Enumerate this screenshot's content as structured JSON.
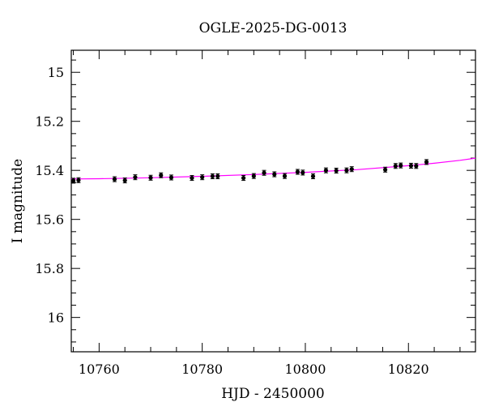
{
  "chart_data": {
    "type": "scatter",
    "title": "OGLE-2025-DG-0013",
    "xlabel": "HJD - 2450000",
    "ylabel": "I magnitude",
    "xlim": [
      10754.6,
      10833
    ],
    "ylim": [
      16.14,
      14.91
    ],
    "y_inverted": true,
    "grid": false,
    "x_major_ticks": [
      10760,
      10780,
      10800,
      10820
    ],
    "x_tick_labels": [
      "10760",
      "10780",
      "10800",
      "10820"
    ],
    "y_major_ticks": [
      15,
      15.2,
      15.4,
      15.6,
      15.8,
      16
    ],
    "y_tick_labels": [
      "15",
      "15.2",
      "15.4",
      "15.6",
      "15.8",
      "16"
    ],
    "series": [
      {
        "kind": "points_with_errorbars",
        "color": "#000000",
        "points": [
          {
            "x": 10755.0,
            "y": 15.442,
            "err": 0.01
          },
          {
            "x": 10756.0,
            "y": 15.44,
            "err": 0.01
          },
          {
            "x": 10763.0,
            "y": 15.436,
            "err": 0.01
          },
          {
            "x": 10765.0,
            "y": 15.441,
            "err": 0.01
          },
          {
            "x": 10767.0,
            "y": 15.428,
            "err": 0.01
          },
          {
            "x": 10770.0,
            "y": 15.43,
            "err": 0.01
          },
          {
            "x": 10772.0,
            "y": 15.42,
            "err": 0.01
          },
          {
            "x": 10774.0,
            "y": 15.429,
            "err": 0.01
          },
          {
            "x": 10778.0,
            "y": 15.431,
            "err": 0.01
          },
          {
            "x": 10780.0,
            "y": 15.428,
            "err": 0.01
          },
          {
            "x": 10782.0,
            "y": 15.424,
            "err": 0.01
          },
          {
            "x": 10783.0,
            "y": 15.424,
            "err": 0.01
          },
          {
            "x": 10788.0,
            "y": 15.431,
            "err": 0.01
          },
          {
            "x": 10790.0,
            "y": 15.423,
            "err": 0.01
          },
          {
            "x": 10792.0,
            "y": 15.41,
            "err": 0.01
          },
          {
            "x": 10794.0,
            "y": 15.416,
            "err": 0.01
          },
          {
            "x": 10796.0,
            "y": 15.423,
            "err": 0.01
          },
          {
            "x": 10798.5,
            "y": 15.406,
            "err": 0.01
          },
          {
            "x": 10799.5,
            "y": 15.409,
            "err": 0.01
          },
          {
            "x": 10801.5,
            "y": 15.424,
            "err": 0.01
          },
          {
            "x": 10804.0,
            "y": 15.4,
            "err": 0.01
          },
          {
            "x": 10806.0,
            "y": 15.401,
            "err": 0.01
          },
          {
            "x": 10808.0,
            "y": 15.4,
            "err": 0.01
          },
          {
            "x": 10809.0,
            "y": 15.395,
            "err": 0.01
          },
          {
            "x": 10815.5,
            "y": 15.397,
            "err": 0.01
          },
          {
            "x": 10817.5,
            "y": 15.382,
            "err": 0.01
          },
          {
            "x": 10818.5,
            "y": 15.38,
            "err": 0.01
          },
          {
            "x": 10820.5,
            "y": 15.381,
            "err": 0.01
          },
          {
            "x": 10821.5,
            "y": 15.382,
            "err": 0.01
          },
          {
            "x": 10823.5,
            "y": 15.366,
            "err": 0.01
          }
        ]
      },
      {
        "kind": "model_curve",
        "color": "#ff00ff",
        "points": [
          {
            "x": 10754.6,
            "y": 15.435
          },
          {
            "x": 10760,
            "y": 15.434
          },
          {
            "x": 10770,
            "y": 15.43
          },
          {
            "x": 10780,
            "y": 15.424
          },
          {
            "x": 10790,
            "y": 15.417
          },
          {
            "x": 10800,
            "y": 15.408
          },
          {
            "x": 10810,
            "y": 15.397
          },
          {
            "x": 10820,
            "y": 15.381
          },
          {
            "x": 10825,
            "y": 15.371
          },
          {
            "x": 10830,
            "y": 15.359
          },
          {
            "x": 10833,
            "y": 15.35
          }
        ]
      }
    ]
  }
}
